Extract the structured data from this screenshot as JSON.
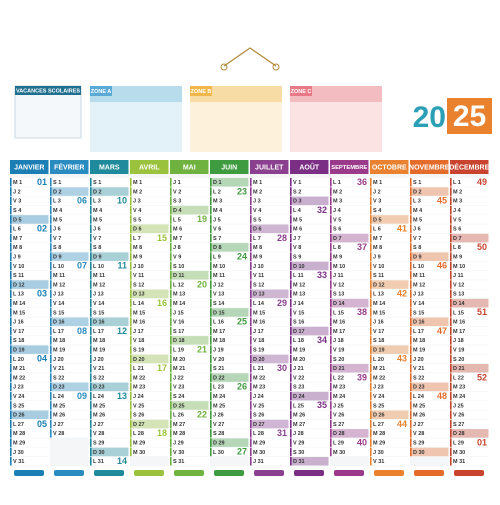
{
  "header": {
    "vacations_title": "VACANCES SCOLAIRES",
    "zones": [
      "ZONE A",
      "ZONE B",
      "ZONE C"
    ],
    "year_start": "20",
    "year_end": "25"
  },
  "months": [
    {
      "name": "JANVIER",
      "color": "#1b7fb5",
      "days": [
        {
          "day": "M 1",
          "week": "01"
        },
        "J 2",
        "V 3",
        "S 4",
        "D 5",
        {
          "day": "L 6",
          "week": "02"
        },
        "M 7",
        "M 8",
        "J 9",
        "V 10",
        "S 11",
        "D 12",
        {
          "day": "L 13",
          "week": "03"
        },
        "M 14",
        "M 15",
        "J 16",
        "V 17",
        "S 18",
        "D 19",
        {
          "day": "L 20",
          "week": "04"
        },
        "M 21",
        "M 22",
        "J 23",
        "V 24",
        "S 25",
        "D 26",
        {
          "day": "L 27",
          "week": "05"
        },
        "M 28",
        "M 29",
        "J 30",
        "V 31"
      ]
    },
    {
      "name": "FÉVRIER",
      "color": "#2a8bc0",
      "days": [
        "S 1",
        "D 2",
        {
          "day": "L 3",
          "week": "06"
        },
        "M 4",
        "M 5",
        "J 6",
        "V 7",
        "S 8",
        "D 9",
        {
          "day": "L 10",
          "week": "07"
        },
        "M 11",
        "M 12",
        "J 13",
        "V 14",
        "S 15",
        "D 16",
        {
          "day": "L 17",
          "week": "08"
        },
        "M 18",
        "M 19",
        "J 20",
        "V 21",
        "S 22",
        "D 23",
        {
          "day": "L 24",
          "week": "09"
        },
        "M 25",
        "M 26",
        "J 27",
        "V 28"
      ]
    },
    {
      "name": "MARS",
      "color": "#1f8a9b",
      "days": [
        "S 1",
        "D 2",
        {
          "day": "L 3",
          "week": "10"
        },
        "M 4",
        "M 5",
        "J 6",
        "V 7",
        "S 8",
        "D 9",
        {
          "day": "L 10",
          "week": "11"
        },
        "M 11",
        "M 12",
        "J 13",
        "V 14",
        "S 15",
        "D 16",
        {
          "day": "L 17",
          "week": "12"
        },
        "M 18",
        "M 19",
        "J 20",
        "V 21",
        "S 22",
        "D 23",
        {
          "day": "L 24",
          "week": "13"
        },
        "M 25",
        "M 26",
        "J 27",
        "V 28",
        "S 29",
        "D 30",
        {
          "day": "L 31",
          "week": "14"
        }
      ]
    },
    {
      "name": "AVRIL",
      "color": "#9bc23c",
      "days": [
        "M 1",
        "M 2",
        "J 3",
        "V 4",
        "S 5",
        "D 6",
        {
          "day": "L 7",
          "week": "15"
        },
        "M 8",
        "M 9",
        "J 10",
        "V 11",
        "S 12",
        "D 13",
        {
          "day": "L 14",
          "week": "16"
        },
        "M 15",
        "M 16",
        "J 17",
        "V 18",
        "S 19",
        "D 20",
        {
          "day": "L 21",
          "week": "17"
        },
        "M 22",
        "M 23",
        "J 24",
        "V 25",
        "S 26",
        "D 27",
        {
          "day": "L 28",
          "week": "18"
        },
        "M 29",
        "M 30"
      ]
    },
    {
      "name": "MAI",
      "color": "#6fb23f",
      "days": [
        "J 1",
        "V 2",
        "S 3",
        "D 4",
        {
          "day": "L 5",
          "week": "19"
        },
        "M 6",
        "M 7",
        "J 8",
        "V 9",
        "S 10",
        "D 11",
        {
          "day": "L 12",
          "week": "20"
        },
        "M 13",
        "M 14",
        "J 15",
        "V 16",
        "S 17",
        "D 18",
        {
          "day": "L 19",
          "week": "21"
        },
        "M 20",
        "M 21",
        "J 22",
        "V 23",
        "S 24",
        "D 25",
        {
          "day": "L 26",
          "week": "22"
        },
        "M 27",
        "M 28",
        "J 29",
        "V 30",
        "S 31"
      ]
    },
    {
      "name": "JUIN",
      "color": "#3f9b3f",
      "days": [
        "D 1",
        {
          "day": "L 2",
          "week": "23"
        },
        "M 3",
        "M 4",
        "J 5",
        "V 6",
        "S 7",
        "D 8",
        {
          "day": "L 9",
          "week": "24"
        },
        "M 10",
        "M 11",
        "J 12",
        "V 13",
        "S 14",
        "D 15",
        {
          "day": "L 16",
          "week": "25"
        },
        "M 17",
        "M 18",
        "J 19",
        "V 20",
        "S 21",
        "D 22",
        {
          "day": "L 23",
          "week": "26"
        },
        "M 24",
        "M 25",
        "J 26",
        "V 27",
        "S 28",
        "D 29",
        {
          "day": "L 30",
          "week": "27"
        }
      ]
    },
    {
      "name": "JUILLET",
      "color": "#8a3f8f",
      "days": [
        "M 1",
        "M 2",
        "J 3",
        "V 4",
        "S 5",
        "D 6",
        {
          "day": "L 7",
          "week": "28"
        },
        "M 8",
        "M 9",
        "J 10",
        "V 11",
        "S 12",
        "D 13",
        {
          "day": "L 14",
          "week": "29"
        },
        "M 15",
        "M 16",
        "J 17",
        "V 18",
        "S 19",
        "D 20",
        {
          "day": "L 21",
          "week": "30"
        },
        "M 22",
        "M 23",
        "J 24",
        "V 25",
        "S 26",
        "D 27",
        {
          "day": "L 28",
          "week": "31"
        },
        "M 29",
        "M 30",
        "J 31"
      ]
    },
    {
      "name": "AOÛT",
      "color": "#7a2f85",
      "days": [
        "V 1",
        "S 2",
        "D 3",
        {
          "day": "L 4",
          "week": "32"
        },
        "M 5",
        "M 6",
        "J 7",
        "V 8",
        "S 9",
        "D 10",
        {
          "day": "L 11",
          "week": "33"
        },
        "M 12",
        "M 13",
        "J 14",
        "V 15",
        "S 16",
        "D 17",
        {
          "day": "L 18",
          "week": "34"
        },
        "M 19",
        "M 20",
        "J 21",
        "V 22",
        "S 23",
        "D 24",
        {
          "day": "L 25",
          "week": "35"
        },
        "M 26",
        "M 27",
        "J 28",
        "V 29",
        "S 30",
        "D 31"
      ]
    },
    {
      "name": "SEPTEMBRE",
      "color": "#9b3a8a",
      "days": [
        {
          "day": "L 1",
          "week": "36"
        },
        "M 2",
        "M 3",
        "J 4",
        "V 5",
        "S 6",
        "D 7",
        {
          "day": "L 8",
          "week": "37"
        },
        "M 9",
        "M 10",
        "J 11",
        "V 12",
        "S 13",
        "D 14",
        {
          "day": "L 15",
          "week": "38"
        },
        "M 16",
        "M 17",
        "J 18",
        "V 19",
        "S 20",
        "D 21",
        {
          "day": "L 22",
          "week": "39"
        },
        "M 23",
        "M 24",
        "J 25",
        "V 26",
        "S 27",
        "D 28",
        {
          "day": "L 29",
          "week": "40"
        },
        "M 30"
      ]
    },
    {
      "name": "OCTOBRE",
      "color": "#e9812e",
      "days": [
        "M 1",
        "J 2",
        "V 3",
        "S 4",
        "D 5",
        {
          "day": "L 6",
          "week": "41"
        },
        "M 7",
        "M 8",
        "J 9",
        "V 10",
        "S 11",
        "D 12",
        {
          "day": "L 13",
          "week": "42"
        },
        "M 14",
        "M 15",
        "J 16",
        "V 17",
        "S 18",
        "D 19",
        {
          "day": "L 20",
          "week": "43"
        },
        "M 21",
        "M 22",
        "J 23",
        "V 24",
        "S 25",
        "D 26",
        {
          "day": "L 27",
          "week": "44"
        },
        "M 28",
        "M 29",
        "J 30",
        "V 31"
      ]
    },
    {
      "name": "NOVEMBRE",
      "color": "#e56b2a",
      "days": [
        "S 1",
        "D 2",
        {
          "day": "L 3",
          "week": "45"
        },
        "M 4",
        "M 5",
        "J 6",
        "V 7",
        "S 8",
        "D 9",
        {
          "day": "L 10",
          "week": "46"
        },
        "M 11",
        "M 12",
        "J 13",
        "V 14",
        "S 15",
        "D 16",
        {
          "day": "L 17",
          "week": "47"
        },
        "M 18",
        "M 19",
        "J 20",
        "V 21",
        "S 22",
        "D 23",
        {
          "day": "L 24",
          "week": "48"
        },
        "M 25",
        "M 26",
        "J 27",
        "V 28",
        "S 29",
        "D 30"
      ]
    },
    {
      "name": "DÉCEMBRE",
      "color": "#c8442f",
      "days": [
        {
          "day": "L 1",
          "week": "49"
        },
        "M 2",
        "M 3",
        "J 4",
        "V 5",
        "S 6",
        "D 7",
        {
          "day": "L 8",
          "week": "50"
        },
        "M 9",
        "M 10",
        "J 11",
        "V 12",
        "S 13",
        "D 14",
        {
          "day": "L 15",
          "week": "51"
        },
        "M 16",
        "M 17",
        "J 18",
        "V 19",
        "S 20",
        "D 21",
        {
          "day": "L 22",
          "week": "52"
        },
        "M 23",
        "M 24",
        "J 25",
        "V 26",
        "S 27",
        "D 28",
        {
          "day": "L 29",
          "week": "01"
        },
        "M 30",
        "M 31"
      ]
    }
  ]
}
